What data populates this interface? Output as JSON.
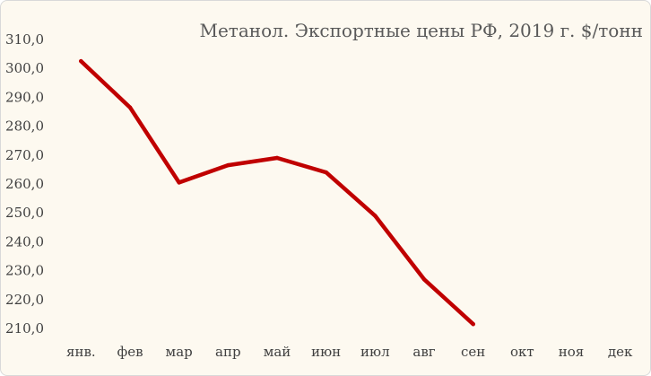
{
  "chart_data": {
    "type": "line",
    "title": "Метанол. Экспортные цены РФ, 2019 г. $/тонн",
    "xlabel": "",
    "ylabel": "",
    "categories": [
      "янв.",
      "фев",
      "мар",
      "апр",
      "май",
      "июн",
      "июл",
      "авг",
      "сен",
      "окт",
      "ноя",
      "дек"
    ],
    "series": [
      {
        "values": [
          302.5,
          286.5,
          260.5,
          266.5,
          269.0,
          264.0,
          249.0,
          227.0,
          211.5,
          null,
          null,
          null
        ]
      }
    ],
    "ylim": [
      210,
      310
    ],
    "ytick_step": 10,
    "ytick_labels": [
      "210,0",
      "220,0",
      "230,0",
      "240,0",
      "250,0",
      "260,0",
      "270,0",
      "280,0",
      "290,0",
      "300,0",
      "310,0"
    ],
    "grid": false,
    "legend": "none",
    "line_color": "#c00000",
    "background_color": "#fdf9f0"
  }
}
